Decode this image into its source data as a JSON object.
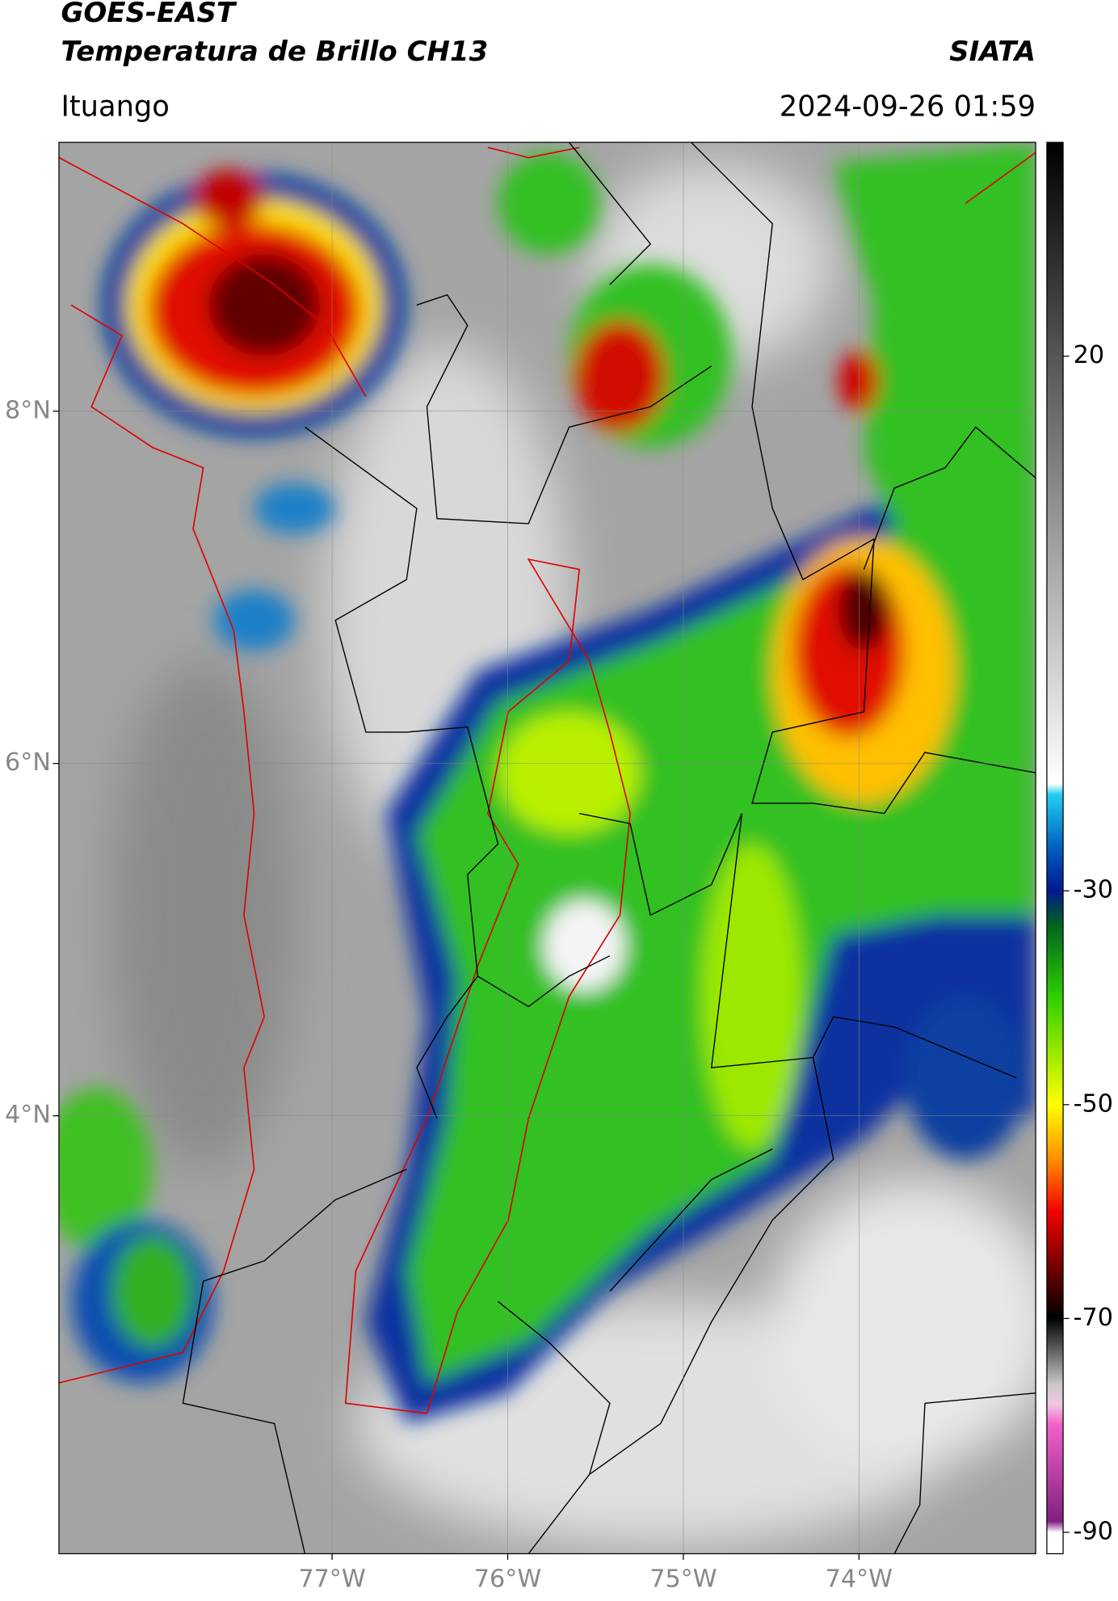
{
  "header": {
    "title": "GOES-EAST",
    "subtitle": "Temperatura de Brillo CH13",
    "brand": "SIATA",
    "location": "Ituango",
    "datetime": "2024-09-26 01:59"
  },
  "map": {
    "xlim": [
      -78.555,
      -72.994
    ],
    "ylim": [
      1.514,
      9.526
    ],
    "xticks": [
      {
        "value": -77,
        "label": "77°W"
      },
      {
        "value": -76,
        "label": "76°W"
      },
      {
        "value": -75,
        "label": "75°W"
      },
      {
        "value": -74,
        "label": "74°W"
      }
    ],
    "yticks": [
      {
        "value": 4,
        "label": "4°N"
      },
      {
        "value": 6,
        "label": "6°N"
      },
      {
        "value": 8,
        "label": "8°N"
      }
    ],
    "grid": true
  },
  "colorbar": {
    "ylim": [
      -92,
      40
    ],
    "yticks": [
      -90,
      -70,
      -50,
      -30,
      20
    ]
  }
}
